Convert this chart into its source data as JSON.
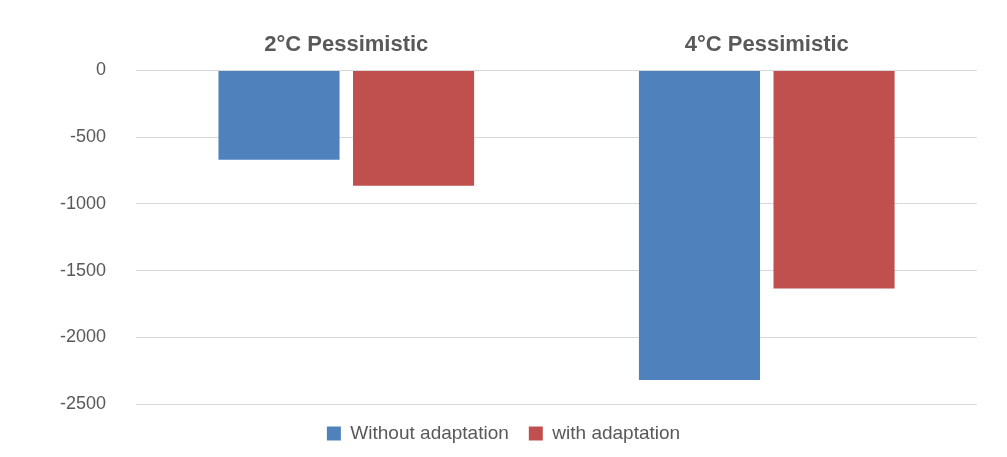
{
  "chart_data": {
    "type": "bar",
    "categories": [
      "2°C Pessimistic",
      "4°C Pessimistic"
    ],
    "series": [
      {
        "name": "Without adaptation",
        "color": "#4f81bd",
        "values": [
          -670,
          -2320
        ]
      },
      {
        "name": "with adaptation",
        "color": "#c0504d",
        "values": [
          -865,
          -1635
        ]
      }
    ],
    "ylim": [
      -2500,
      0
    ],
    "yticks": [
      -2500,
      -2000,
      -1500,
      -1000,
      -500,
      0
    ],
    "grid": "y",
    "legend": "bottom"
  }
}
